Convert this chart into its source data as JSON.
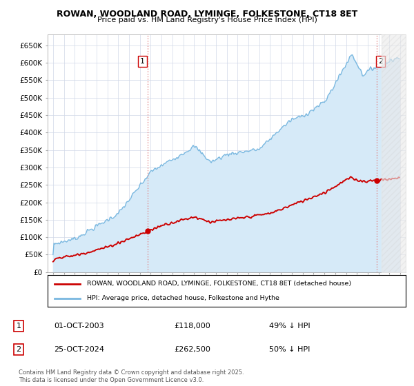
{
  "title": "ROWAN, WOODLAND ROAD, LYMINGE, FOLKESTONE, CT18 8ET",
  "subtitle": "Price paid vs. HM Land Registry's House Price Index (HPI)",
  "hpi_label": "HPI: Average price, detached house, Folkestone and Hythe",
  "property_label": "ROWAN, WOODLAND ROAD, LYMINGE, FOLKESTONE, CT18 8ET (detached house)",
  "transaction1_date": "01-OCT-2003",
  "transaction1_price": 118000,
  "transaction1_hpi": "49% ↓ HPI",
  "transaction2_date": "25-OCT-2024",
  "transaction2_price": 262500,
  "transaction2_hpi": "50% ↓ HPI",
  "footer": "Contains HM Land Registry data © Crown copyright and database right 2025.\nThis data is licensed under the Open Government Licence v3.0.",
  "hpi_color": "#7ab8e0",
  "hpi_fill_color": "#d6eaf8",
  "property_color": "#cc0000",
  "dashed_line_color": "#e08080",
  "ylim": [
    0,
    680000
  ],
  "yticks": [
    0,
    50000,
    100000,
    150000,
    200000,
    250000,
    300000,
    350000,
    400000,
    450000,
    500000,
    550000,
    600000,
    650000
  ],
  "transaction1_year": 2003.75,
  "transaction2_year": 2024.8
}
